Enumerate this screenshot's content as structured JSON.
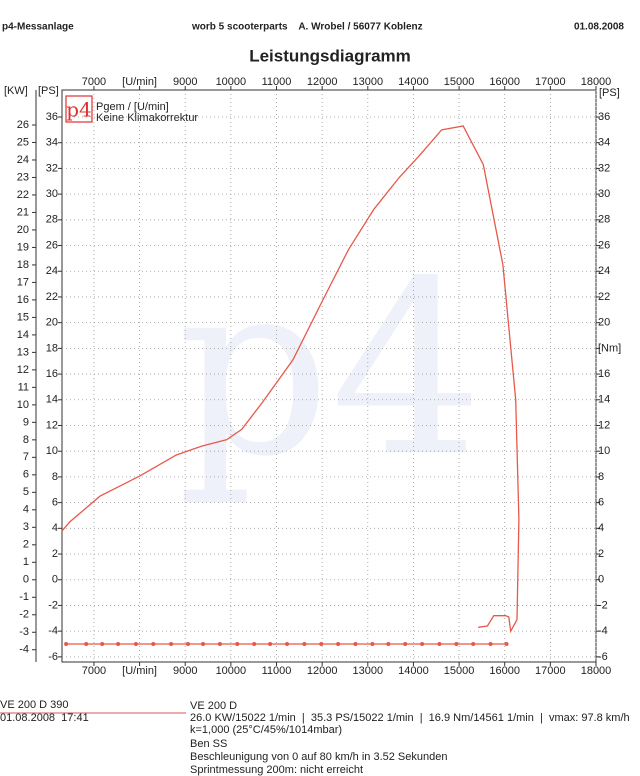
{
  "header": {
    "left": "p4-Messanlage",
    "center": "worb 5 scooterparts    A. Wrobel / 56077 Koblenz",
    "right": "01.08.2008"
  },
  "logo": "p4",
  "chart_data": {
    "type": "line",
    "title": "Leistungsdiagramm",
    "x_label": "[U/min]",
    "y_label": "[PS]",
    "kw_label": "[KW]",
    "y2_label": "[PS]",
    "legend_note": "Keine Klimakorrektur",
    "grid": true,
    "xlim": [
      6300,
      18000
    ],
    "xticks": [
      7000,
      {
        "value": 8000,
        "label": "[U/min]"
      },
      9000,
      10000,
      11000,
      12000,
      13000,
      14000,
      15000,
      16000,
      17000,
      18000
    ],
    "ylim": [
      -6.4,
      38.1
    ],
    "yticks": [
      -6,
      -4,
      -2,
      0,
      2,
      4,
      6,
      8,
      10,
      12,
      14,
      16,
      18,
      20,
      22,
      24,
      26,
      28,
      30,
      32,
      34,
      36
    ],
    "kw_ylim": [
      -4.7,
      28.0
    ],
    "kw_yticks": [
      -4,
      -3,
      -2,
      -1,
      0,
      1,
      2,
      3,
      4,
      5,
      6,
      7,
      8,
      9,
      10,
      11,
      12,
      13,
      14,
      15,
      16,
      17,
      18,
      19,
      20,
      21,
      22,
      23,
      24,
      25,
      26
    ],
    "y2lim": [
      -6.4,
      38.1
    ],
    "y2ticks": [
      -6,
      -4,
      -2,
      0,
      2,
      4,
      6,
      8,
      10,
      12,
      14,
      16,
      {
        "value": 18,
        "label": "[Nm]"
      },
      20,
      22,
      24,
      26,
      28,
      30,
      32,
      34,
      36
    ],
    "series": [
      {
        "name": "Pgem / [U/min]",
        "color": "#e8584a",
        "markers": false,
        "x": [
          6300,
          6470,
          7130,
          8020,
          8800,
          9360,
          9910,
          10240,
          10690,
          11360,
          12020,
          12580,
          13130,
          13690,
          14130,
          14620,
          15090,
          15530,
          15960,
          16240,
          16310,
          16270,
          16130,
          16090,
          16020,
          15760,
          15620,
          15420
        ],
        "values": [
          3.8,
          4.5,
          6.5,
          8.1,
          9.7,
          10.4,
          10.9,
          11.7,
          13.8,
          17.1,
          21.8,
          25.7,
          28.8,
          31.3,
          33.0,
          35.0,
          35.3,
          32.3,
          24.5,
          14.0,
          4.7,
          -3.1,
          -4.0,
          -2.9,
          -2.8,
          -2.8,
          -3.6,
          -3.7
        ]
      },
      {
        "color": "#e8584a",
        "markers": true,
        "x": [
          6390,
          6830,
          7180,
          7530,
          7920,
          8300,
          8690,
          9060,
          9390,
          9760,
          10140,
          10510,
          10860,
          11230,
          11610,
          11980,
          12350,
          12730,
          13100,
          13450,
          13820,
          14190,
          14570,
          14940,
          15310,
          15690,
          16040
        ],
        "values": [
          -5.0,
          -5.0,
          -5.0,
          -5.0,
          -5.0,
          -5.0,
          -5.0,
          -5.0,
          -5.0,
          -5.0,
          -5.0,
          -5.0,
          -5.0,
          -5.0,
          -5.0,
          -5.0,
          -5.0,
          -5.0,
          -5.0,
          -5.0,
          -5.0,
          -5.0,
          -5.0,
          -5.0,
          -5.0,
          -5.0,
          -5.0
        ]
      }
    ]
  },
  "footer": {
    "left": [
      "VE 200 D 390",
      "01.08.2008  17:41"
    ],
    "right": [
      "VE 200 D",
      "26.0 KW/15022 1/min  |  35.3 PS/15022 1/min  |  16.9 Nm/14561 1/min  |  vmax: 97.8 km/h",
      "k=1,000 (25°C/45%/1014mbar)",
      "Ben SS",
      "Beschleunigung von 0 auf 80 km/h in 3.52 Sekunden",
      "Sprintmessung 200m: nicht erreicht"
    ]
  }
}
